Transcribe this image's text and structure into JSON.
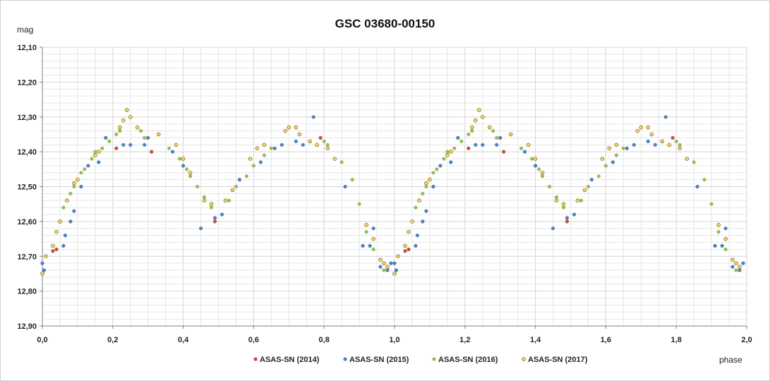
{
  "chart_data": {
    "type": "scatter",
    "title": "GSC 03680-00150",
    "xlabel": "phase",
    "ylabel": "mag",
    "xlim": [
      0,
      2
    ],
    "ylim": [
      12.1,
      12.9
    ],
    "y_inverted": true,
    "grid": true,
    "x_ticks": [
      "0,0",
      "0,2",
      "0,4",
      "0,6",
      "0,8",
      "1,0",
      "1,2",
      "1,4",
      "1,6",
      "1,8",
      "2,0"
    ],
    "y_ticks": [
      "12,10",
      "12,20",
      "12,30",
      "12,40",
      "12,50",
      "12,60",
      "12,70",
      "12,80",
      "12,90"
    ],
    "legend_position": "bottom",
    "series": [
      {
        "name": "ASAS-SN (2014)",
        "color": "#c0504d",
        "marker": "filled",
        "x": [
          0.03,
          0.04,
          0.21,
          0.31,
          0.49,
          0.76,
          0.79,
          1.03,
          1.04,
          1.21,
          1.31,
          1.49,
          1.76,
          1.79
        ],
        "y": [
          12.685,
          12.68,
          12.39,
          12.4,
          12.6,
          12.37,
          12.36,
          12.685,
          12.68,
          12.39,
          12.4,
          12.6,
          12.37,
          12.36
        ]
      },
      {
        "name": "ASAS-SN (2015)",
        "color": "#4f81bd",
        "marker": "filled",
        "x": [
          0.0,
          0.005,
          0.06,
          0.065,
          0.08,
          0.09,
          0.11,
          0.13,
          0.16,
          0.18,
          0.23,
          0.25,
          0.29,
          0.3,
          0.37,
          0.4,
          0.45,
          0.49,
          0.51,
          0.56,
          0.62,
          0.66,
          0.68,
          0.72,
          0.74,
          0.77,
          0.86,
          0.91,
          0.93,
          0.94,
          0.96,
          0.98,
          0.99,
          1.0,
          1.005,
          1.06,
          1.065,
          1.08,
          1.09,
          1.11,
          1.13,
          1.16,
          1.18,
          1.23,
          1.25,
          1.29,
          1.3,
          1.37,
          1.4,
          1.45,
          1.49,
          1.51,
          1.56,
          1.62,
          1.66,
          1.68,
          1.72,
          1.74,
          1.77,
          1.86,
          1.91,
          1.93,
          1.94,
          1.96,
          1.98,
          1.99
        ],
        "y": [
          12.72,
          12.74,
          12.67,
          12.64,
          12.6,
          12.57,
          12.5,
          12.44,
          12.43,
          12.36,
          12.38,
          12.38,
          12.38,
          12.36,
          12.4,
          12.44,
          12.62,
          12.59,
          12.58,
          12.48,
          12.43,
          12.39,
          12.38,
          12.37,
          12.38,
          12.3,
          12.5,
          12.67,
          12.67,
          12.62,
          12.73,
          12.74,
          12.72,
          12.72,
          12.74,
          12.67,
          12.64,
          12.6,
          12.57,
          12.5,
          12.44,
          12.43,
          12.36,
          12.38,
          12.38,
          12.38,
          12.36,
          12.4,
          12.44,
          12.62,
          12.59,
          12.58,
          12.48,
          12.43,
          12.39,
          12.38,
          12.37,
          12.38,
          12.3,
          12.5,
          12.67,
          12.67,
          12.62,
          12.73,
          12.74,
          12.72
        ]
      },
      {
        "name": "ASAS-SN (2016)",
        "color": "#9bbb59",
        "marker": "filled",
        "x": [
          0.06,
          0.08,
          0.09,
          0.11,
          0.12,
          0.14,
          0.15,
          0.17,
          0.19,
          0.21,
          0.22,
          0.28,
          0.29,
          0.36,
          0.39,
          0.41,
          0.42,
          0.44,
          0.46,
          0.48,
          0.53,
          0.55,
          0.58,
          0.6,
          0.63,
          0.65,
          0.8,
          0.81,
          0.85,
          0.88,
          0.9,
          0.92,
          0.94,
          0.97,
          1.06,
          1.08,
          1.09,
          1.11,
          1.12,
          1.14,
          1.15,
          1.17,
          1.19,
          1.21,
          1.22,
          1.28,
          1.29,
          1.36,
          1.39,
          1.41,
          1.42,
          1.44,
          1.46,
          1.48,
          1.53,
          1.55,
          1.58,
          1.6,
          1.63,
          1.65,
          1.8,
          1.81,
          1.85,
          1.88,
          1.9,
          1.92,
          1.94,
          1.97
        ],
        "y": [
          12.56,
          12.52,
          12.5,
          12.46,
          12.45,
          12.42,
          12.4,
          12.39,
          12.37,
          12.35,
          12.34,
          12.34,
          12.36,
          12.39,
          12.42,
          12.45,
          12.47,
          12.5,
          12.53,
          12.56,
          12.54,
          12.5,
          12.47,
          12.44,
          12.41,
          12.39,
          12.37,
          12.38,
          12.43,
          12.48,
          12.55,
          12.63,
          12.68,
          12.74,
          12.56,
          12.52,
          12.5,
          12.46,
          12.45,
          12.42,
          12.4,
          12.39,
          12.37,
          12.35,
          12.34,
          12.34,
          12.36,
          12.39,
          12.42,
          12.45,
          12.47,
          12.5,
          12.53,
          12.56,
          12.54,
          12.5,
          12.47,
          12.44,
          12.41,
          12.39,
          12.37,
          12.38,
          12.43,
          12.48,
          12.55,
          12.63,
          12.68,
          12.74
        ]
      },
      {
        "name": "ASAS-SN (2017)",
        "color": "#f5d76e",
        "marker": "open",
        "x": [
          0.0,
          0.01,
          0.03,
          0.04,
          0.05,
          0.07,
          0.09,
          0.1,
          0.15,
          0.16,
          0.22,
          0.23,
          0.24,
          0.25,
          0.27,
          0.33,
          0.38,
          0.4,
          0.42,
          0.46,
          0.48,
          0.52,
          0.54,
          0.59,
          0.61,
          0.63,
          0.69,
          0.7,
          0.72,
          0.73,
          0.76,
          0.78,
          0.81,
          0.83,
          0.92,
          0.94,
          0.96,
          0.97,
          0.98,
          1.0,
          1.01,
          1.03,
          1.04,
          1.05,
          1.07,
          1.09,
          1.1,
          1.15,
          1.16,
          1.22,
          1.23,
          1.24,
          1.25,
          1.27,
          1.33,
          1.38,
          1.4,
          1.42,
          1.46,
          1.48,
          1.52,
          1.54,
          1.59,
          1.61,
          1.63,
          1.69,
          1.7,
          1.72,
          1.73,
          1.76,
          1.78,
          1.81,
          1.83,
          1.92,
          1.94,
          1.96,
          1.97,
          1.98
        ],
        "y": [
          12.75,
          12.7,
          12.67,
          12.63,
          12.6,
          12.54,
          12.49,
          12.48,
          12.41,
          12.4,
          12.33,
          12.31,
          12.28,
          12.3,
          12.33,
          12.35,
          12.38,
          12.42,
          12.46,
          12.54,
          12.55,
          12.54,
          12.51,
          12.42,
          12.39,
          12.38,
          12.34,
          12.33,
          12.33,
          12.35,
          12.37,
          12.38,
          12.39,
          12.42,
          12.61,
          12.65,
          12.71,
          12.72,
          12.73,
          12.75,
          12.7,
          12.67,
          12.63,
          12.6,
          12.54,
          12.49,
          12.48,
          12.41,
          12.4,
          12.33,
          12.31,
          12.28,
          12.3,
          12.33,
          12.35,
          12.38,
          12.42,
          12.46,
          12.54,
          12.55,
          12.54,
          12.51,
          12.42,
          12.39,
          12.38,
          12.34,
          12.33,
          12.33,
          12.35,
          12.37,
          12.38,
          12.39,
          12.42,
          12.61,
          12.65,
          12.71,
          12.72,
          12.73
        ]
      }
    ]
  }
}
